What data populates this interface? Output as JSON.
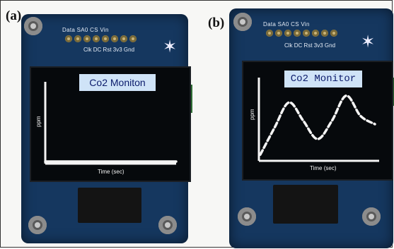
{
  "panels": [
    {
      "label": "(a)",
      "pins_top": "Data  SA0   CS   Vin",
      "pins_bottom": "Clk DC Rst  3v3  Gnd",
      "screen": {
        "title": "Co2 Moniton",
        "ylabel": "ppm",
        "xlabel": "Time (sec)"
      },
      "chart_data": {
        "type": "line",
        "x": [
          0,
          5,
          10,
          15,
          20,
          25,
          30,
          35,
          40
        ],
        "values": [
          0,
          0,
          0,
          0,
          0,
          0,
          0,
          0,
          0
        ]
      }
    },
    {
      "label": "(b)",
      "pins_top": "Data  SA0   CS   Vin",
      "pins_bottom": "Clk DC Rst  3v3  Gnd",
      "screen": {
        "title": "Co2 Monitor",
        "ylabel": "ppm",
        "xlabel": "Time (sec)"
      },
      "chart_data": {
        "type": "line",
        "x": [
          0,
          5,
          10,
          15,
          20,
          25,
          30,
          35,
          40
        ],
        "values": [
          0.05,
          0.45,
          0.82,
          0.55,
          0.28,
          0.55,
          0.92,
          0.62,
          0.5
        ]
      }
    }
  ],
  "colors": {
    "board": "#15375f",
    "screen_bg": "#06090c",
    "title_bg": "#cfe3f7",
    "title_text": "#0b1b6b",
    "plot_line": "#f4f4f4"
  }
}
